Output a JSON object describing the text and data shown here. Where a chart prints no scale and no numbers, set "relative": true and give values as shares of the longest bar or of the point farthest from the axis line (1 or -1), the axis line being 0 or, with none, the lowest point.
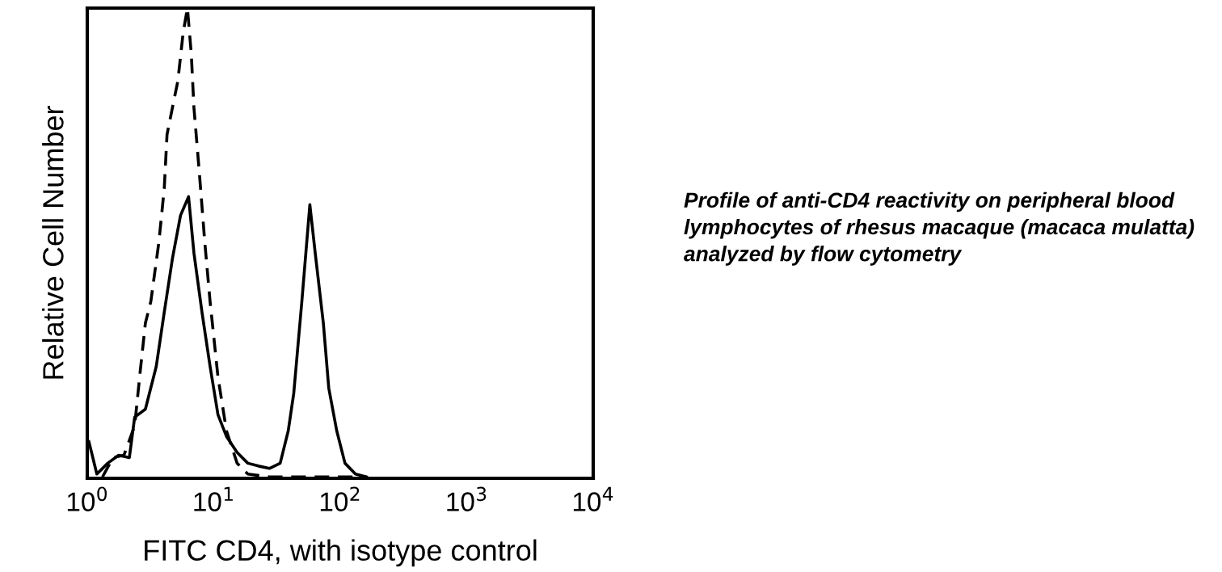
{
  "chart_data": {
    "type": "line",
    "relative": true,
    "log": "x",
    "xlabel": "FITC CD4, with isotype control",
    "ylabel": "Relative Cell Number",
    "xlim": [
      1,
      10000
    ],
    "xticks": [
      {
        "value": 1,
        "label": "10$^{0}$"
      },
      {
        "value": 10,
        "label": "10$^{1}$"
      },
      {
        "value": 100,
        "label": "10$^{2}$"
      },
      {
        "value": 1000,
        "label": "10$^{3}$"
      },
      {
        "value": 10000,
        "label": "10$^{4}$"
      }
    ],
    "tick_labels": "x",
    "grid": false,
    "marker": "none",
    "series": [
      {
        "color": "#000000",
        "line_style": "solid",
        "x": [
          1.03,
          1.19,
          1.45,
          1.77,
          2.15,
          2.37,
          2.88,
          3.51,
          4.06,
          4.71,
          5.46,
          6.32,
          6.97,
          8.07,
          9.35,
          10.8,
          12.6,
          15.3,
          18.6,
          22.6,
          27.5,
          33.5,
          38.8,
          42.9,
          49.7,
          57.5,
          63.4,
          73.5,
          81.1,
          93.8,
          109,
          132,
          161
        ],
        "values": [
          0.078,
          0.009,
          0.032,
          0.049,
          0.044,
          0.13,
          0.147,
          0.238,
          0.353,
          0.467,
          0.559,
          0.599,
          0.479,
          0.353,
          0.238,
          0.135,
          0.089,
          0.055,
          0.032,
          0.026,
          0.021,
          0.032,
          0.101,
          0.181,
          0.376,
          0.582,
          0.479,
          0.33,
          0.192,
          0.101,
          0.032,
          0.009,
          0.003
        ]
      },
      {
        "color": "#000000",
        "line_style": "dashed",
        "x": [
          1.32,
          1.6,
          1.95,
          2.37,
          2.62,
          2.88,
          3.18,
          3.68,
          4.06,
          4.27,
          4.71,
          5.2,
          5.73,
          6.19,
          6.64,
          6.97,
          7.69,
          8.49,
          9.35,
          10.8,
          12.6,
          15.3,
          18.6,
          27.5,
          49.7,
          161
        ],
        "values": [
          0.003,
          0.044,
          0.049,
          0.112,
          0.227,
          0.33,
          0.376,
          0.502,
          0.616,
          0.731,
          0.788,
          0.845,
          0.948,
          1,
          0.903,
          0.788,
          0.65,
          0.502,
          0.376,
          0.215,
          0.101,
          0.032,
          0.009,
          0.003,
          0.003,
          0.003
        ]
      }
    ],
    "annotations": [
      "Profile of anti-CD4 reactivity on peripheral blood\nlymphocytes of rhesus macaque (macaca mulatta)\nanalyzed by flow cytometry"
    ]
  }
}
